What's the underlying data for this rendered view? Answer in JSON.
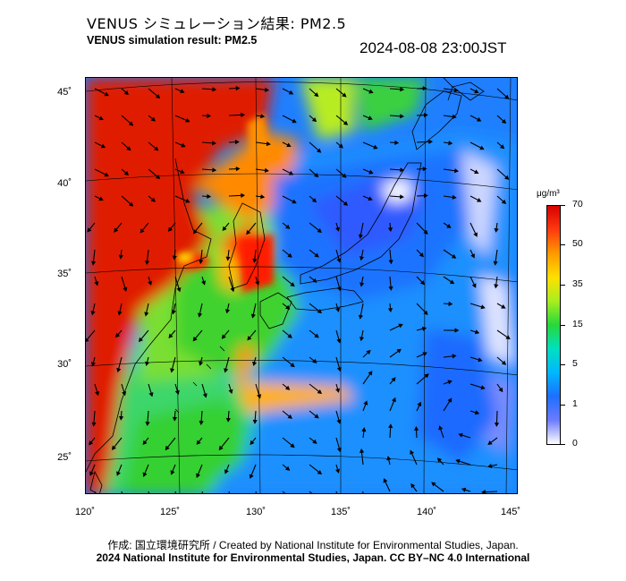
{
  "title_ja": "VENUS シミュレーション結果: PM2.5",
  "title_en": "VENUS simulation result: PM2.5",
  "timestamp": "2024-08-08 23:00JST",
  "axes": {
    "lat_labels": [
      "45˚",
      "40˚",
      "35˚",
      "30˚",
      "25˚"
    ],
    "lon_labels": [
      "120˚",
      "125˚",
      "130˚",
      "135˚",
      "140˚",
      "145˚"
    ]
  },
  "colorbar": {
    "unit": "μg/m³",
    "ticks": [
      "70",
      "50",
      "35",
      "15",
      "5",
      "1",
      "0"
    ],
    "colors": [
      "#ffffff",
      "#6c7bff",
      "#1e6fff",
      "#00b7ff",
      "#00e0c0",
      "#26d83a",
      "#a8ee20",
      "#ffe000",
      "#ff9a00",
      "#ff3a10",
      "#d80000"
    ]
  },
  "credit": "作成: 国立環境研究所 / Created by National Institute for Environmental Studies, Japan.",
  "copyright": "2024 National Institute for Environmental Studies, Japan. CC BY–NC 4.0 International"
}
